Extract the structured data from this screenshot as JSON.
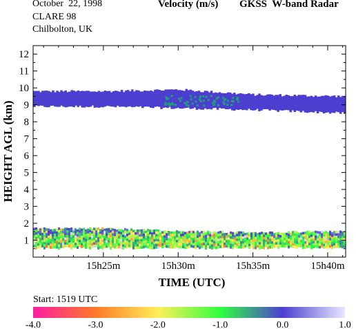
{
  "header": {
    "date": "October  22, 1998",
    "campaign": "CLARE 98",
    "location": "Chilbolton, UK",
    "variable": "Velocity (m/s)",
    "instrument": "GKSS  W-band Radar"
  },
  "start_label": "Start: 1519 UTC",
  "colors": {
    "upper_layer": "#4c3fd0",
    "upper_patch": "#1f9e7a",
    "lower_base": "#3ad44a",
    "frame": "#000000"
  },
  "chart_data": {
    "type": "heatmap",
    "title": "Velocity (m/s)",
    "xlabel": "TIME (UTC)",
    "ylabel": "HEIGHT AGL (km)",
    "x_unit": "minutes past 15h",
    "xlim": [
      20.3,
      41.2
    ],
    "ylim": [
      0,
      12.5
    ],
    "xticks": [
      25,
      30,
      35,
      40
    ],
    "xtick_labels": [
      "15h25m",
      "15h30m",
      "15h35m",
      "15h40m"
    ],
    "yticks": [
      1,
      2,
      3,
      4,
      5,
      6,
      7,
      8,
      9,
      10,
      11,
      12
    ],
    "ytick_labels": [
      "1",
      "2",
      "3",
      "4",
      "5",
      "6",
      "7",
      "8",
      "9",
      "10",
      "11",
      "12"
    ],
    "layers": [
      {
        "name": "upper cloud",
        "typical_velocity": 0.0,
        "top": [
          [
            20.3,
            9.8
          ],
          [
            25,
            9.8
          ],
          [
            30,
            9.9
          ],
          [
            35,
            9.6
          ],
          [
            41.2,
            9.5
          ]
        ],
        "base": [
          [
            20.3,
            8.9
          ],
          [
            25,
            8.9
          ],
          [
            30,
            8.8
          ],
          [
            35,
            8.7
          ],
          [
            41.2,
            8.5
          ]
        ]
      },
      {
        "name": "low cloud",
        "typical_velocity": -1.0,
        "top": [
          [
            20.3,
            1.7
          ],
          [
            25,
            1.7
          ],
          [
            30,
            1.55
          ],
          [
            35,
            1.45
          ],
          [
            41.2,
            1.55
          ]
        ],
        "base": [
          [
            20.3,
            0.6
          ],
          [
            41.2,
            0.6
          ]
        ]
      }
    ],
    "colorbar": {
      "min": -4.0,
      "max": 1.0,
      "ticks": [
        -4.0,
        -3.0,
        -2.0,
        -1.0,
        0.0,
        1.0
      ],
      "tick_labels": [
        "-4.0",
        "-3.0",
        "-2.0",
        "-1.0",
        "0.0",
        "1.0"
      ],
      "stops": [
        {
          "value": -4.0,
          "color": "#ff1ea0"
        },
        {
          "value": -3.0,
          "color": "#ff7a28"
        },
        {
          "value": -2.0,
          "color": "#ffef5a"
        },
        {
          "value": -1.0,
          "color": "#30ff40"
        },
        {
          "value": 0.0,
          "color": "#4c3fd0"
        },
        {
          "value": 1.0,
          "color": "#e8e8ff"
        }
      ]
    }
  }
}
